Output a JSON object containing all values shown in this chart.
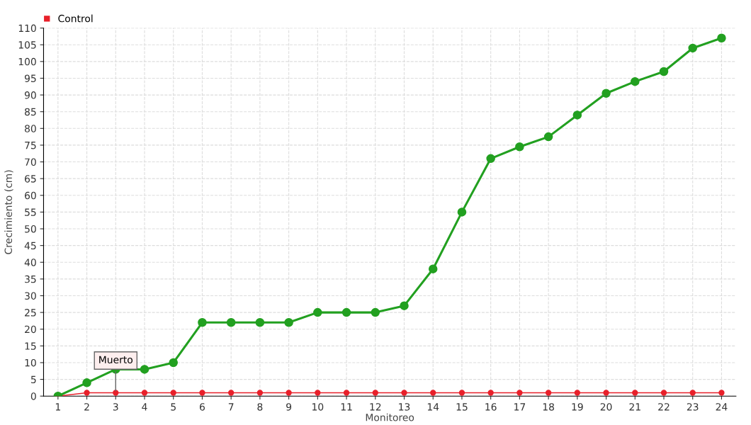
{
  "chart_data": {
    "type": "line",
    "xlabel": "Monitoreo",
    "ylabel": "Crecimiento (cm)",
    "categories": [
      "1",
      "2",
      "3",
      "4",
      "5",
      "6",
      "7",
      "8",
      "9",
      "10",
      "11",
      "12",
      "13",
      "14",
      "15",
      "16",
      "17",
      "18",
      "19",
      "20",
      "21",
      "22",
      "23",
      "24"
    ],
    "series": [
      {
        "color": "#22a020",
        "values": [
          0,
          4,
          8,
          8,
          10,
          22,
          22,
          22,
          22,
          25,
          25,
          25,
          27,
          38,
          55,
          71,
          74.5,
          77.5,
          84,
          90.5,
          94,
          97,
          104,
          107
        ]
      },
      {
        "name": "Control",
        "color": "#e8202a",
        "values": [
          0,
          1,
          1,
          1,
          1,
          1,
          1,
          1,
          1,
          1,
          1,
          1,
          1,
          1,
          1,
          1,
          1,
          1,
          1,
          1,
          1,
          1,
          1,
          1
        ]
      }
    ],
    "annotations": [
      {
        "text": "Muerto",
        "x": "3",
        "y": 1
      }
    ],
    "ylim": [
      0,
      110
    ],
    "yticks": [
      0,
      5,
      10,
      15,
      20,
      25,
      30,
      35,
      40,
      45,
      50,
      55,
      60,
      65,
      70,
      75,
      80,
      85,
      90,
      95,
      100,
      105,
      110
    ],
    "grid": true,
    "legend": "top left",
    "marker": "circle",
    "line_style": "solid"
  }
}
